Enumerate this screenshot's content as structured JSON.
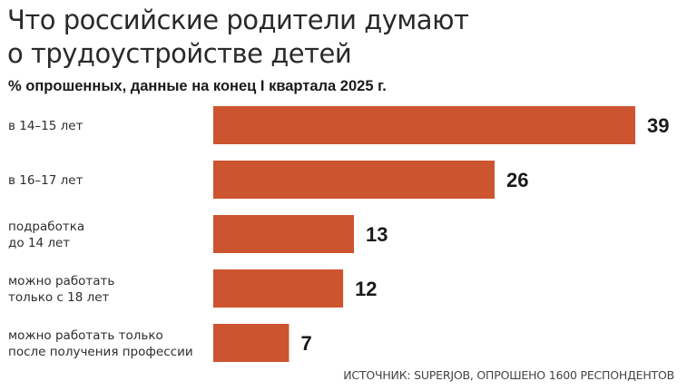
{
  "title_lines": [
    "Что российские родители думают",
    "о трудоустройстве детей"
  ],
  "subtitle": "% опрошенных, данные на конец I квартала 2025 г.",
  "source": "ИСТОЧНИК: SUPERJOB, ОПРОШЕНО 1600 РЕСПОНДЕНТОВ",
  "colors": {
    "bar": "#cc5530"
  },
  "chart_data": {
    "type": "bar",
    "orientation": "horizontal",
    "title": "Что российские родители думают о трудоустройстве детей",
    "subtitle": "% опрошенных, данные на конец I квартала 2025 г.",
    "categories": [
      [
        "в 14–15 лет"
      ],
      [
        "в 16–17 лет"
      ],
      [
        "подработка",
        "до 14 лет"
      ],
      [
        "можно работать",
        "только с 18 лет"
      ],
      [
        "можно работать только",
        "после получения профессии"
      ]
    ],
    "values": [
      39,
      26,
      13,
      12,
      7
    ],
    "xlim": [
      0,
      39
    ],
    "xlabel": "",
    "ylabel": "",
    "grid": false
  }
}
